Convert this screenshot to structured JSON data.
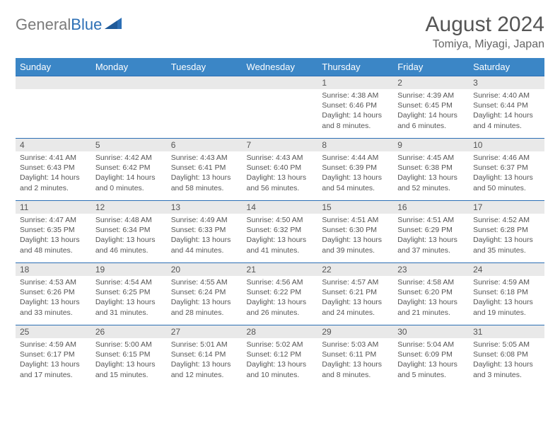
{
  "logo": {
    "text1": "General",
    "text2": "Blue"
  },
  "title": "August 2024",
  "subtitle": "Tomiya, Miyagi, Japan",
  "days": [
    "Sunday",
    "Monday",
    "Tuesday",
    "Wednesday",
    "Thursday",
    "Friday",
    "Saturday"
  ],
  "header_bg": "#3b86c6",
  "accent": "#2c6fb5",
  "daynum_bg": "#e9e9e9",
  "weeks": [
    [
      null,
      null,
      null,
      null,
      {
        "n": "1",
        "sr": "Sunrise: 4:38 AM",
        "ss": "Sunset: 6:46 PM",
        "d1": "Daylight: 14 hours",
        "d2": "and 8 minutes."
      },
      {
        "n": "2",
        "sr": "Sunrise: 4:39 AM",
        "ss": "Sunset: 6:45 PM",
        "d1": "Daylight: 14 hours",
        "d2": "and 6 minutes."
      },
      {
        "n": "3",
        "sr": "Sunrise: 4:40 AM",
        "ss": "Sunset: 6:44 PM",
        "d1": "Daylight: 14 hours",
        "d2": "and 4 minutes."
      }
    ],
    [
      {
        "n": "4",
        "sr": "Sunrise: 4:41 AM",
        "ss": "Sunset: 6:43 PM",
        "d1": "Daylight: 14 hours",
        "d2": "and 2 minutes."
      },
      {
        "n": "5",
        "sr": "Sunrise: 4:42 AM",
        "ss": "Sunset: 6:42 PM",
        "d1": "Daylight: 14 hours",
        "d2": "and 0 minutes."
      },
      {
        "n": "6",
        "sr": "Sunrise: 4:43 AM",
        "ss": "Sunset: 6:41 PM",
        "d1": "Daylight: 13 hours",
        "d2": "and 58 minutes."
      },
      {
        "n": "7",
        "sr": "Sunrise: 4:43 AM",
        "ss": "Sunset: 6:40 PM",
        "d1": "Daylight: 13 hours",
        "d2": "and 56 minutes."
      },
      {
        "n": "8",
        "sr": "Sunrise: 4:44 AM",
        "ss": "Sunset: 6:39 PM",
        "d1": "Daylight: 13 hours",
        "d2": "and 54 minutes."
      },
      {
        "n": "9",
        "sr": "Sunrise: 4:45 AM",
        "ss": "Sunset: 6:38 PM",
        "d1": "Daylight: 13 hours",
        "d2": "and 52 minutes."
      },
      {
        "n": "10",
        "sr": "Sunrise: 4:46 AM",
        "ss": "Sunset: 6:37 PM",
        "d1": "Daylight: 13 hours",
        "d2": "and 50 minutes."
      }
    ],
    [
      {
        "n": "11",
        "sr": "Sunrise: 4:47 AM",
        "ss": "Sunset: 6:35 PM",
        "d1": "Daylight: 13 hours",
        "d2": "and 48 minutes."
      },
      {
        "n": "12",
        "sr": "Sunrise: 4:48 AM",
        "ss": "Sunset: 6:34 PM",
        "d1": "Daylight: 13 hours",
        "d2": "and 46 minutes."
      },
      {
        "n": "13",
        "sr": "Sunrise: 4:49 AM",
        "ss": "Sunset: 6:33 PM",
        "d1": "Daylight: 13 hours",
        "d2": "and 44 minutes."
      },
      {
        "n": "14",
        "sr": "Sunrise: 4:50 AM",
        "ss": "Sunset: 6:32 PM",
        "d1": "Daylight: 13 hours",
        "d2": "and 41 minutes."
      },
      {
        "n": "15",
        "sr": "Sunrise: 4:51 AM",
        "ss": "Sunset: 6:30 PM",
        "d1": "Daylight: 13 hours",
        "d2": "and 39 minutes."
      },
      {
        "n": "16",
        "sr": "Sunrise: 4:51 AM",
        "ss": "Sunset: 6:29 PM",
        "d1": "Daylight: 13 hours",
        "d2": "and 37 minutes."
      },
      {
        "n": "17",
        "sr": "Sunrise: 4:52 AM",
        "ss": "Sunset: 6:28 PM",
        "d1": "Daylight: 13 hours",
        "d2": "and 35 minutes."
      }
    ],
    [
      {
        "n": "18",
        "sr": "Sunrise: 4:53 AM",
        "ss": "Sunset: 6:26 PM",
        "d1": "Daylight: 13 hours",
        "d2": "and 33 minutes."
      },
      {
        "n": "19",
        "sr": "Sunrise: 4:54 AM",
        "ss": "Sunset: 6:25 PM",
        "d1": "Daylight: 13 hours",
        "d2": "and 31 minutes."
      },
      {
        "n": "20",
        "sr": "Sunrise: 4:55 AM",
        "ss": "Sunset: 6:24 PM",
        "d1": "Daylight: 13 hours",
        "d2": "and 28 minutes."
      },
      {
        "n": "21",
        "sr": "Sunrise: 4:56 AM",
        "ss": "Sunset: 6:22 PM",
        "d1": "Daylight: 13 hours",
        "d2": "and 26 minutes."
      },
      {
        "n": "22",
        "sr": "Sunrise: 4:57 AM",
        "ss": "Sunset: 6:21 PM",
        "d1": "Daylight: 13 hours",
        "d2": "and 24 minutes."
      },
      {
        "n": "23",
        "sr": "Sunrise: 4:58 AM",
        "ss": "Sunset: 6:20 PM",
        "d1": "Daylight: 13 hours",
        "d2": "and 21 minutes."
      },
      {
        "n": "24",
        "sr": "Sunrise: 4:59 AM",
        "ss": "Sunset: 6:18 PM",
        "d1": "Daylight: 13 hours",
        "d2": "and 19 minutes."
      }
    ],
    [
      {
        "n": "25",
        "sr": "Sunrise: 4:59 AM",
        "ss": "Sunset: 6:17 PM",
        "d1": "Daylight: 13 hours",
        "d2": "and 17 minutes."
      },
      {
        "n": "26",
        "sr": "Sunrise: 5:00 AM",
        "ss": "Sunset: 6:15 PM",
        "d1": "Daylight: 13 hours",
        "d2": "and 15 minutes."
      },
      {
        "n": "27",
        "sr": "Sunrise: 5:01 AM",
        "ss": "Sunset: 6:14 PM",
        "d1": "Daylight: 13 hours",
        "d2": "and 12 minutes."
      },
      {
        "n": "28",
        "sr": "Sunrise: 5:02 AM",
        "ss": "Sunset: 6:12 PM",
        "d1": "Daylight: 13 hours",
        "d2": "and 10 minutes."
      },
      {
        "n": "29",
        "sr": "Sunrise: 5:03 AM",
        "ss": "Sunset: 6:11 PM",
        "d1": "Daylight: 13 hours",
        "d2": "and 8 minutes."
      },
      {
        "n": "30",
        "sr": "Sunrise: 5:04 AM",
        "ss": "Sunset: 6:09 PM",
        "d1": "Daylight: 13 hours",
        "d2": "and 5 minutes."
      },
      {
        "n": "31",
        "sr": "Sunrise: 5:05 AM",
        "ss": "Sunset: 6:08 PM",
        "d1": "Daylight: 13 hours",
        "d2": "and 3 minutes."
      }
    ]
  ]
}
